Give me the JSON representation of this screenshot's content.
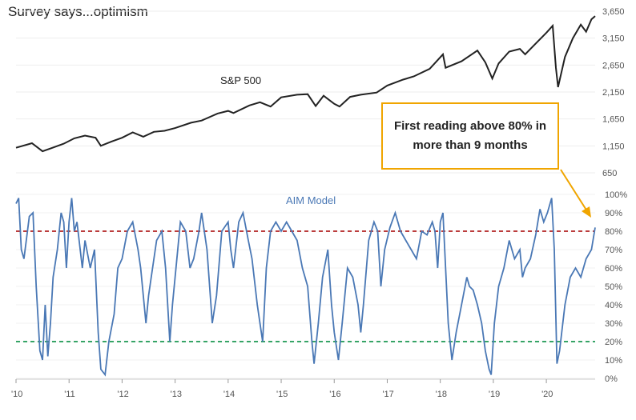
{
  "chart_data": {
    "type": "line",
    "title": "Survey says...optimism",
    "x_ticks": [
      "'10",
      "'11",
      "'12",
      "'13",
      "'14",
      "'15",
      "'16",
      "'17",
      "'18",
      "'19",
      "'20"
    ],
    "x_range": [
      2010,
      2020.92
    ],
    "top_panel": {
      "series_name": "S&P 500",
      "y_ticks": [
        "3,650",
        "3,150",
        "2,650",
        "2,150",
        "1,650",
        "1,150",
        "650"
      ],
      "y_range": [
        650,
        3650
      ],
      "points": [
        [
          2010.0,
          1115
        ],
        [
          2010.3,
          1200
        ],
        [
          2010.5,
          1050
        ],
        [
          2010.7,
          1120
        ],
        [
          2010.9,
          1190
        ],
        [
          2011.1,
          1290
        ],
        [
          2011.3,
          1340
        ],
        [
          2011.5,
          1300
        ],
        [
          2011.6,
          1150
        ],
        [
          2011.8,
          1230
        ],
        [
          2012.0,
          1300
        ],
        [
          2012.2,
          1400
        ],
        [
          2012.4,
          1320
        ],
        [
          2012.6,
          1410
        ],
        [
          2012.8,
          1430
        ],
        [
          2013.0,
          1480
        ],
        [
          2013.3,
          1580
        ],
        [
          2013.5,
          1620
        ],
        [
          2013.8,
          1750
        ],
        [
          2014.0,
          1800
        ],
        [
          2014.1,
          1760
        ],
        [
          2014.4,
          1900
        ],
        [
          2014.6,
          1960
        ],
        [
          2014.8,
          1880
        ],
        [
          2015.0,
          2050
        ],
        [
          2015.3,
          2100
        ],
        [
          2015.5,
          2110
        ],
        [
          2015.65,
          1890
        ],
        [
          2015.8,
          2080
        ],
        [
          2016.0,
          1930
        ],
        [
          2016.1,
          1880
        ],
        [
          2016.3,
          2060
        ],
        [
          2016.5,
          2100
        ],
        [
          2016.8,
          2140
        ],
        [
          2017.0,
          2270
        ],
        [
          2017.3,
          2380
        ],
        [
          2017.5,
          2440
        ],
        [
          2017.8,
          2580
        ],
        [
          2018.05,
          2850
        ],
        [
          2018.1,
          2600
        ],
        [
          2018.4,
          2720
        ],
        [
          2018.7,
          2920
        ],
        [
          2018.85,
          2700
        ],
        [
          2018.98,
          2400
        ],
        [
          2019.1,
          2680
        ],
        [
          2019.3,
          2900
        ],
        [
          2019.5,
          2950
        ],
        [
          2019.6,
          2850
        ],
        [
          2019.8,
          3050
        ],
        [
          2020.0,
          3250
        ],
        [
          2020.12,
          3380
        ],
        [
          2020.18,
          2600
        ],
        [
          2020.22,
          2240
        ],
        [
          2020.35,
          2800
        ],
        [
          2020.5,
          3150
        ],
        [
          2020.65,
          3400
        ],
        [
          2020.75,
          3270
        ],
        [
          2020.85,
          3500
        ],
        [
          2020.92,
          3560
        ]
      ]
    },
    "bottom_panel": {
      "series_name": "AIM Model",
      "y_ticks": [
        "100%",
        "90%",
        "80%",
        "70%",
        "60%",
        "50%",
        "40%",
        "30%",
        "20%",
        "10%",
        "0%"
      ],
      "y_range": [
        0,
        100
      ],
      "reference_lines": [
        {
          "value": 80,
          "color": "#b22222",
          "style": "dashed"
        },
        {
          "value": 20,
          "color": "#1a9850",
          "style": "dashed"
        }
      ],
      "points": [
        [
          2010.0,
          95
        ],
        [
          2010.05,
          98
        ],
        [
          2010.1,
          70
        ],
        [
          2010.15,
          65
        ],
        [
          2010.25,
          88
        ],
        [
          2010.32,
          90
        ],
        [
          2010.38,
          50
        ],
        [
          2010.45,
          15
        ],
        [
          2010.5,
          10
        ],
        [
          2010.55,
          40
        ],
        [
          2010.6,
          12
        ],
        [
          2010.65,
          30
        ],
        [
          2010.7,
          55
        ],
        [
          2010.78,
          70
        ],
        [
          2010.85,
          90
        ],
        [
          2010.9,
          85
        ],
        [
          2010.95,
          60
        ],
        [
          2011.0,
          85
        ],
        [
          2011.05,
          98
        ],
        [
          2011.1,
          80
        ],
        [
          2011.15,
          85
        ],
        [
          2011.25,
          60
        ],
        [
          2011.3,
          75
        ],
        [
          2011.4,
          60
        ],
        [
          2011.48,
          70
        ],
        [
          2011.55,
          25
        ],
        [
          2011.6,
          5
        ],
        [
          2011.68,
          2
        ],
        [
          2011.75,
          20
        ],
        [
          2011.85,
          35
        ],
        [
          2011.92,
          60
        ],
        [
          2012.0,
          65
        ],
        [
          2012.1,
          80
        ],
        [
          2012.2,
          85
        ],
        [
          2012.3,
          70
        ],
        [
          2012.35,
          60
        ],
        [
          2012.45,
          30
        ],
        [
          2012.5,
          45
        ],
        [
          2012.55,
          55
        ],
        [
          2012.65,
          75
        ],
        [
          2012.75,
          80
        ],
        [
          2012.82,
          60
        ],
        [
          2012.9,
          20
        ],
        [
          2012.95,
          40
        ],
        [
          2013.05,
          70
        ],
        [
          2013.1,
          85
        ],
        [
          2013.2,
          80
        ],
        [
          2013.28,
          60
        ],
        [
          2013.35,
          65
        ],
        [
          2013.45,
          80
        ],
        [
          2013.5,
          90
        ],
        [
          2013.6,
          70
        ],
        [
          2013.7,
          30
        ],
        [
          2013.78,
          45
        ],
        [
          2013.88,
          80
        ],
        [
          2014.0,
          85
        ],
        [
          2014.05,
          70
        ],
        [
          2014.1,
          60
        ],
        [
          2014.2,
          85
        ],
        [
          2014.28,
          90
        ],
        [
          2014.38,
          75
        ],
        [
          2014.45,
          65
        ],
        [
          2014.55,
          40
        ],
        [
          2014.65,
          20
        ],
        [
          2014.72,
          60
        ],
        [
          2014.8,
          80
        ],
        [
          2014.9,
          85
        ],
        [
          2015.0,
          80
        ],
        [
          2015.1,
          85
        ],
        [
          2015.2,
          80
        ],
        [
          2015.3,
          75
        ],
        [
          2015.4,
          60
        ],
        [
          2015.5,
          50
        ],
        [
          2015.58,
          20
        ],
        [
          2015.62,
          8
        ],
        [
          2015.7,
          30
        ],
        [
          2015.78,
          55
        ],
        [
          2015.88,
          70
        ],
        [
          2015.95,
          40
        ],
        [
          2016.0,
          25
        ],
        [
          2016.08,
          10
        ],
        [
          2016.15,
          30
        ],
        [
          2016.25,
          60
        ],
        [
          2016.35,
          55
        ],
        [
          2016.45,
          40
        ],
        [
          2016.5,
          25
        ],
        [
          2016.55,
          40
        ],
        [
          2016.65,
          75
        ],
        [
          2016.75,
          85
        ],
        [
          2016.82,
          80
        ],
        [
          2016.88,
          50
        ],
        [
          2016.95,
          70
        ],
        [
          2017.05,
          82
        ],
        [
          2017.15,
          90
        ],
        [
          2017.25,
          80
        ],
        [
          2017.35,
          75
        ],
        [
          2017.45,
          70
        ],
        [
          2017.55,
          65
        ],
        [
          2017.65,
          80
        ],
        [
          2017.75,
          78
        ],
        [
          2017.85,
          85
        ],
        [
          2017.9,
          80
        ],
        [
          2017.95,
          60
        ],
        [
          2018.0,
          85
        ],
        [
          2018.05,
          90
        ],
        [
          2018.1,
          60
        ],
        [
          2018.15,
          30
        ],
        [
          2018.22,
          10
        ],
        [
          2018.3,
          25
        ],
        [
          2018.4,
          40
        ],
        [
          2018.5,
          55
        ],
        [
          2018.55,
          50
        ],
        [
          2018.62,
          48
        ],
        [
          2018.7,
          40
        ],
        [
          2018.78,
          30
        ],
        [
          2018.85,
          15
        ],
        [
          2018.92,
          5
        ],
        [
          2018.96,
          2
        ],
        [
          2019.02,
          30
        ],
        [
          2019.1,
          50
        ],
        [
          2019.2,
          60
        ],
        [
          2019.3,
          75
        ],
        [
          2019.4,
          65
        ],
        [
          2019.5,
          70
        ],
        [
          2019.55,
          55
        ],
        [
          2019.6,
          60
        ],
        [
          2019.7,
          65
        ],
        [
          2019.8,
          78
        ],
        [
          2019.88,
          92
        ],
        [
          2019.95,
          85
        ],
        [
          2020.02,
          90
        ],
        [
          2020.1,
          98
        ],
        [
          2020.15,
          70
        ],
        [
          2020.2,
          8
        ],
        [
          2020.25,
          15
        ],
        [
          2020.35,
          40
        ],
        [
          2020.45,
          55
        ],
        [
          2020.55,
          60
        ],
        [
          2020.65,
          55
        ],
        [
          2020.75,
          65
        ],
        [
          2020.85,
          70
        ],
        [
          2020.92,
          82
        ]
      ]
    },
    "annotation": "First reading above 80% in more than 9 months"
  }
}
